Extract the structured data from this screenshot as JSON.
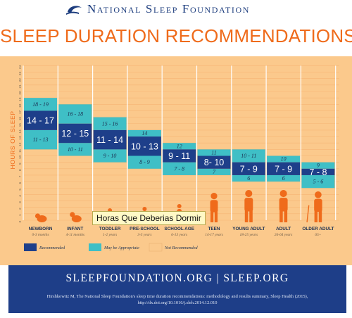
{
  "brand": {
    "name": "National Sleep Foundation",
    "logo_icon": "moon-icon"
  },
  "title": "SLEEP DURATION RECOMMENDATIONS",
  "chart_data": {
    "type": "bar",
    "ylabel": "HOURS OF SLEEP",
    "ylim": [
      0,
      24
    ],
    "yticks": [
      "0",
      "1",
      "2",
      "3",
      "4",
      "5",
      "6",
      "7",
      "8",
      "9",
      "10",
      "11",
      "12",
      "13",
      "14",
      "15",
      "16",
      "17",
      "18",
      "19",
      "20",
      "21",
      "22",
      "23",
      "24"
    ],
    "categories": [
      {
        "name": "NEWBORN",
        "age": "0-3 months",
        "icon": "newborn-figure-icon"
      },
      {
        "name": "INFANT",
        "age": "4-11 months",
        "icon": "infant-figure-icon"
      },
      {
        "name": "TODDLER",
        "age": "1-2 years",
        "icon": "toddler-figure-icon"
      },
      {
        "name": "PRE-SCHOOL",
        "age": "3-5 years",
        "icon": "preschool-figure-icon"
      },
      {
        "name": "SCHOOL AGE",
        "age": "6-13 years",
        "icon": "school-age-figure-icon"
      },
      {
        "name": "TEEN",
        "age": "14-17 years",
        "icon": "teen-figure-icon"
      },
      {
        "name": "YOUNG ADULT",
        "age": "18-25 years",
        "icon": "young-adult-figure-icon"
      },
      {
        "name": "ADULT",
        "age": "26-64 years",
        "icon": "adult-figure-icon"
      },
      {
        "name": "OLDER ADULT",
        "age": "65+",
        "icon": "older-adult-figure-icon"
      }
    ],
    "appropriate_low": [
      [
        11,
        14
      ],
      [
        10,
        12
      ],
      [
        9,
        11
      ],
      [
        8,
        10
      ],
      [
        7,
        9
      ],
      [
        7,
        8
      ],
      [
        6,
        7
      ],
      [
        6,
        7
      ],
      [
        5,
        7
      ]
    ],
    "recommended": [
      [
        14,
        17
      ],
      [
        12,
        15
      ],
      [
        11,
        14
      ],
      [
        10,
        13
      ],
      [
        9,
        11
      ],
      [
        8,
        10
      ],
      [
        7,
        9
      ],
      [
        7,
        9
      ],
      [
        7,
        8
      ]
    ],
    "appropriate_high": [
      [
        17,
        19
      ],
      [
        15,
        18
      ],
      [
        14,
        16
      ],
      [
        13,
        14
      ],
      [
        11,
        12
      ],
      [
        10,
        11
      ],
      [
        9,
        11
      ],
      [
        9,
        10
      ],
      [
        8,
        9
      ]
    ],
    "labels_recommended": [
      "14 - 17",
      "12 - 15",
      "11 - 14",
      "10 - 13",
      "9 - 11",
      "8- 10",
      "7 - 9",
      "7 - 9",
      "7 - 8"
    ],
    "labels_high": [
      "18 - 19",
      "16 - 18",
      "15 - 16",
      "14",
      "12",
      "11",
      "10 - 11",
      "10",
      "9"
    ],
    "labels_low": [
      "11 - 13",
      "10 - 11",
      "9 - 10",
      "8 - 9",
      "7 - 8",
      "7",
      "6",
      "6",
      "5 - 6"
    ],
    "legend": [
      "Recommended",
      "May be Appropriate",
      "Not Recommended"
    ],
    "colors": {
      "recommended": "#1e3f8a",
      "appropriate": "#3fbfc6",
      "not_recommended": "#fbc98c",
      "accent": "#ef6b1b"
    }
  },
  "footer": {
    "url": "SLEEPFOUNDATION.ORG | SLEEP.ORG",
    "citation_line1": "Hirshkowitz M, The National Sleep Foundation's sleep time duration recommendations: methodology and results summary, Sleep Health (2015),",
    "citation_line2": "http://dx.doi.org/10.1016/j.sleh.2014.12.010"
  },
  "tooltip": "Horas Que Deberias Dormir"
}
